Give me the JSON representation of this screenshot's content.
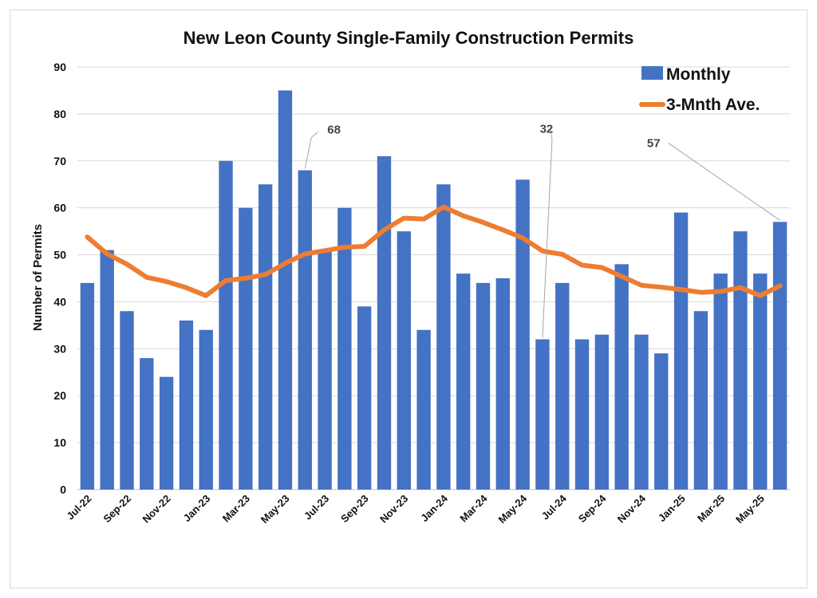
{
  "chart_data": {
    "type": "bar",
    "title": "New Leon County Single-Family Construction Permits",
    "ylabel": "Number of Permits",
    "xlabel": "",
    "ylim": [
      0,
      90
    ],
    "yticks": [
      0,
      10,
      20,
      30,
      40,
      50,
      60,
      70,
      80,
      90
    ],
    "grid": true,
    "legend_position": "top-right",
    "categories": [
      "Jul-22",
      "Aug-22",
      "Sep-22",
      "Oct-22",
      "Nov-22",
      "Dec-22",
      "Jan-23",
      "Feb-23",
      "Mar-23",
      "Apr-23",
      "May-23",
      "Jun-23",
      "Jul-23",
      "Aug-23",
      "Sep-23",
      "Oct-23",
      "Nov-23",
      "Dec-23",
      "Jan-24",
      "Feb-24",
      "Mar-24",
      "Apr-24",
      "May-24",
      "Jun-24",
      "Jul-24",
      "Aug-24",
      "Sep-24",
      "Oct-24",
      "Nov-24",
      "Dec-24",
      "Jan-25",
      "Feb-25",
      "Mar-25",
      "Apr-25",
      "May-25",
      "Jun-25"
    ],
    "x_tick_labels": [
      "Jul-22",
      "Sep-22",
      "Nov-22",
      "Jan-23",
      "Mar-23",
      "May-23",
      "Jul-23",
      "Sep-23",
      "Nov-23",
      "Jan-24",
      "Mar-24",
      "May-24",
      "Jul-24",
      "Sep-24",
      "Nov-24",
      "Jan-25",
      "Mar-25",
      "May-25"
    ],
    "series": [
      {
        "name": "Monthly",
        "type": "bar",
        "color": "#4472C4",
        "values": [
          44,
          51,
          38,
          28,
          24,
          36,
          34,
          70,
          60,
          65,
          85,
          68,
          51,
          60,
          39,
          71,
          55,
          34,
          65,
          46,
          44,
          45,
          66,
          32,
          44,
          32,
          33,
          48,
          33,
          29,
          59,
          38,
          46,
          55,
          46,
          57
        ]
      },
      {
        "name": "3-Mnth Ave.",
        "type": "line",
        "color": "#ED7D31",
        "values": [
          53.8,
          50.2,
          48.0,
          45.2,
          44.3,
          43.0,
          41.3,
          44.5,
          45.0,
          45.8,
          48.2,
          50.2,
          50.9,
          51.6,
          51.8,
          55.3,
          57.8,
          57.6,
          60.2,
          58.3,
          56.9,
          55.3,
          53.6,
          50.8,
          50.1,
          47.8,
          47.3,
          45.4,
          43.5,
          43.1,
          42.6,
          42.0,
          42.2,
          43.0,
          41.3,
          43.4
        ]
      }
    ],
    "annotations": [
      {
        "text": "68",
        "category": "Jun-23",
        "value": 68
      },
      {
        "text": "32",
        "category": "Jun-24",
        "value": 32
      },
      {
        "text": "57",
        "category": "Jun-25",
        "value": 57
      }
    ]
  }
}
